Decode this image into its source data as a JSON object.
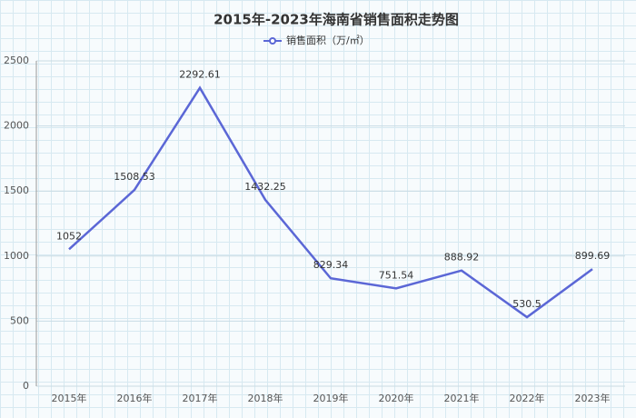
{
  "chart_data": {
    "type": "line",
    "title": "2015年-2023年海南省销售面积走势图",
    "categories": [
      "2015年",
      "2016年",
      "2017年",
      "2018年",
      "2019年",
      "2020年",
      "2021年",
      "2022年",
      "2023年"
    ],
    "series": [
      {
        "name": "销售面积（万/㎡）",
        "color": "#5b67d6",
        "values": [
          1052,
          1508.53,
          2292.61,
          1432.25,
          829.34,
          751.54,
          888.92,
          530.5,
          899.69
        ]
      }
    ],
    "ylim": [
      0,
      2500
    ],
    "yticks": [
      0,
      500,
      1000,
      1500,
      2000,
      2500
    ],
    "grid": true,
    "legend": "top"
  }
}
